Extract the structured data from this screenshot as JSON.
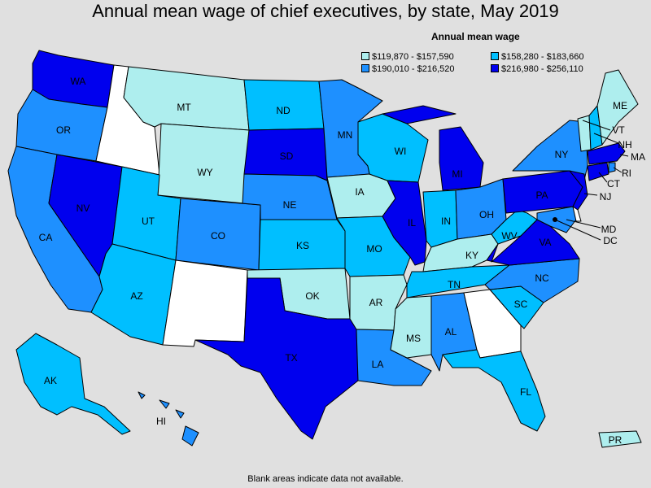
{
  "title": "Annual mean wage of chief executives, by state, May 2019",
  "legend": {
    "title": "Annual mean wage",
    "items": [
      {
        "label": "$119,870 - $157,590",
        "color": "#aeeeee"
      },
      {
        "label": "$158,280 - $183,660",
        "color": "#00bfff"
      },
      {
        "label": "$190,010 - $216,520",
        "color": "#1e90ff"
      },
      {
        "label": "$216,980 - $256,110",
        "color": "#0000ee"
      }
    ]
  },
  "footnote": "Blank areas indicate data not available.",
  "colors": {
    "background": "#e0e0e0",
    "no_data": "#ffffff",
    "tier1": "#aeeeee",
    "tier2": "#00bfff",
    "tier3": "#1e90ff",
    "tier4": "#0000ee"
  },
  "states": {
    "WA": {
      "label": "WA",
      "tier": 4
    },
    "OR": {
      "label": "OR",
      "tier": 3
    },
    "CA": {
      "label": "CA",
      "tier": 3
    },
    "NV": {
      "label": "NV",
      "tier": 4
    },
    "ID": {
      "label": "",
      "tier": 0
    },
    "MT": {
      "label": "MT",
      "tier": 1
    },
    "WY": {
      "label": "WY",
      "tier": 1
    },
    "UT": {
      "label": "UT",
      "tier": 2
    },
    "AZ": {
      "label": "AZ",
      "tier": 2
    },
    "CO": {
      "label": "CO",
      "tier": 3
    },
    "NM": {
      "label": "",
      "tier": 0
    },
    "ND": {
      "label": "ND",
      "tier": 2
    },
    "SD": {
      "label": "SD",
      "tier": 4
    },
    "NE": {
      "label": "NE",
      "tier": 3
    },
    "KS": {
      "label": "KS",
      "tier": 2
    },
    "OK": {
      "label": "OK",
      "tier": 1
    },
    "TX": {
      "label": "TX",
      "tier": 4
    },
    "MN": {
      "label": "MN",
      "tier": 3
    },
    "IA": {
      "label": "IA",
      "tier": 1
    },
    "MO": {
      "label": "MO",
      "tier": 2
    },
    "AR": {
      "label": "AR",
      "tier": 1
    },
    "LA": {
      "label": "LA",
      "tier": 3
    },
    "WI": {
      "label": "WI",
      "tier": 2
    },
    "IL": {
      "label": "IL",
      "tier": 4
    },
    "MI": {
      "label": "MI",
      "tier": 4
    },
    "IN": {
      "label": "IN",
      "tier": 2
    },
    "OH": {
      "label": "OH",
      "tier": 3
    },
    "KY": {
      "label": "KY",
      "tier": 1
    },
    "TN": {
      "label": "TN",
      "tier": 2
    },
    "MS": {
      "label": "MS",
      "tier": 1
    },
    "AL": {
      "label": "AL",
      "tier": 3
    },
    "GA": {
      "label": "",
      "tier": 0
    },
    "FL": {
      "label": "FL",
      "tier": 2
    },
    "SC": {
      "label": "SC",
      "tier": 2
    },
    "NC": {
      "label": "NC",
      "tier": 3
    },
    "VA": {
      "label": "VA",
      "tier": 4
    },
    "WV": {
      "label": "WV",
      "tier": 2
    },
    "PA": {
      "label": "PA",
      "tier": 4
    },
    "NY": {
      "label": "NY",
      "tier": 3
    },
    "VT": {
      "label": "VT",
      "tier": 1
    },
    "NH": {
      "label": "NH",
      "tier": 2
    },
    "ME": {
      "label": "ME",
      "tier": 1
    },
    "MA": {
      "label": "MA",
      "tier": 4
    },
    "RI": {
      "label": "RI",
      "tier": 3
    },
    "CT": {
      "label": "CT",
      "tier": 4
    },
    "NJ": {
      "label": "NJ",
      "tier": 4
    },
    "DE": {
      "label": "",
      "tier": 0
    },
    "MD": {
      "label": "MD",
      "tier": 3
    },
    "DC": {
      "label": "DC",
      "tier": 0
    },
    "AK": {
      "label": "AK",
      "tier": 2
    },
    "HI": {
      "label": "HI",
      "tier": 3
    },
    "PR": {
      "label": "PR",
      "tier": 1
    }
  }
}
